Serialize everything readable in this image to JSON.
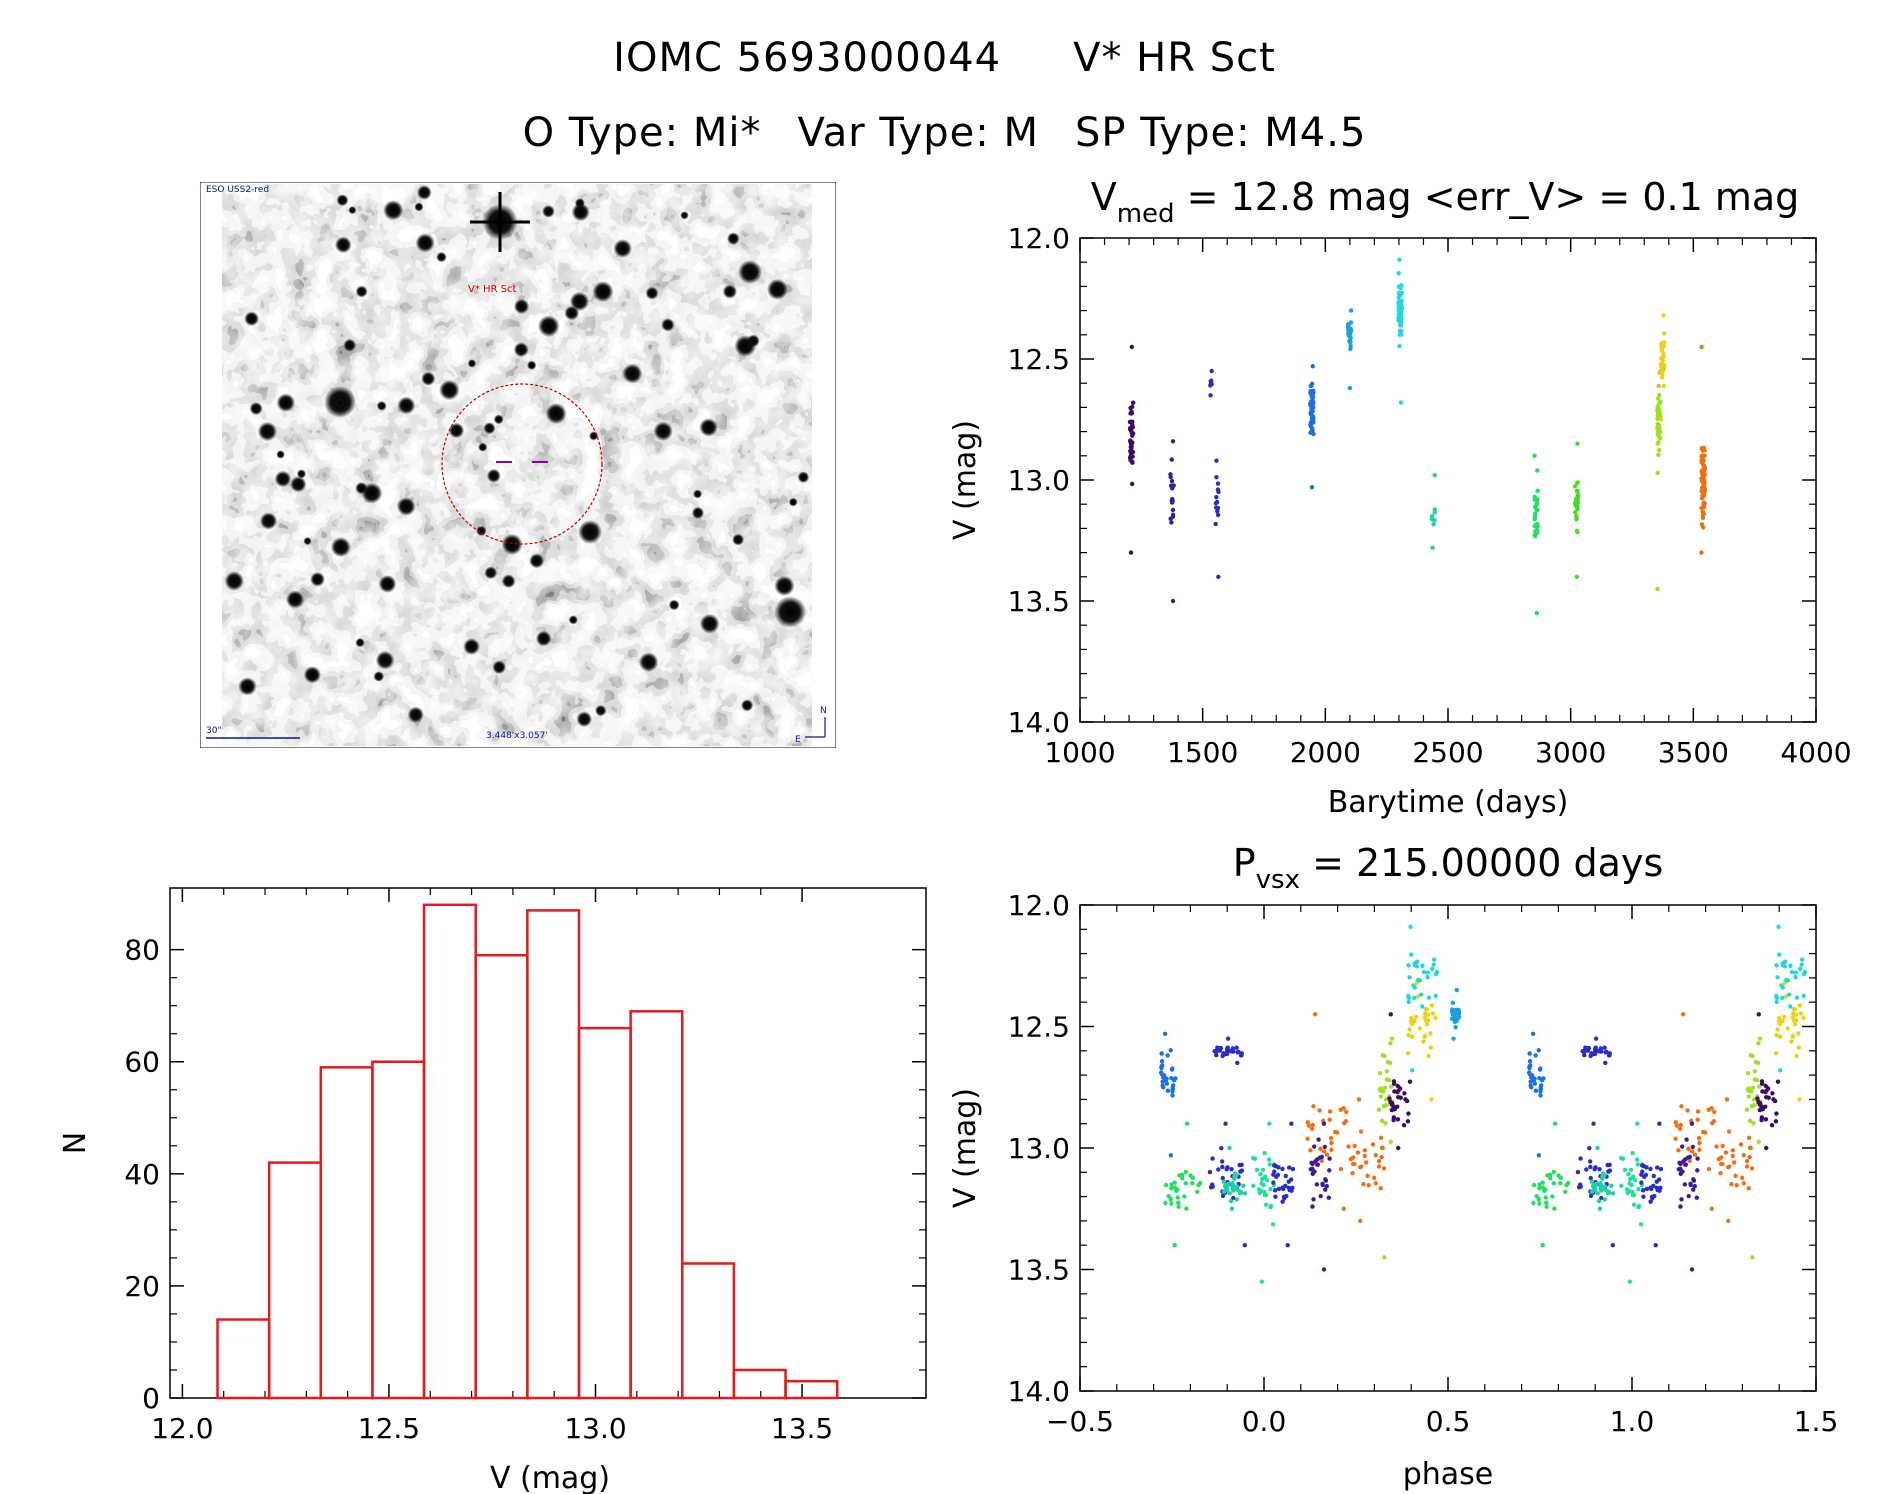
{
  "header": {
    "id": "IOMC 5693000044",
    "name": "V* HR Sct",
    "otype": "O Type: Mi*",
    "vartype": "Var Type: M",
    "sptype": "SP Type: M4.5"
  },
  "finder": {
    "survey": "ESO USS2-red",
    "target_label": "V* HR Sct",
    "scale_label": "30\"",
    "size_label": "3.448'x3.057'",
    "north": "N",
    "east": "E"
  },
  "chart_data": [
    {
      "id": "lightcurve",
      "type": "scatter",
      "title_main": "V",
      "title_sub": "med",
      "title_rest": " = 12.8 mag <err_V> = 0.1 mag",
      "xlabel": "Barytime (days)",
      "ylabel": "V (mag)",
      "xlim": [
        1000,
        4000
      ],
      "ylim": [
        14.0,
        12.0
      ],
      "xticks": [
        1000,
        1500,
        2000,
        2500,
        3000,
        3500,
        4000
      ],
      "yticks": [
        12.0,
        12.5,
        13.0,
        13.5,
        14.0
      ],
      "groups": [
        {
          "x": 1210,
          "ymin": 12.45,
          "ymax": 13.3,
          "center": 12.82,
          "n": 40,
          "color": "#3c0a6e"
        },
        {
          "x": 1375,
          "ymin": 12.84,
          "ymax": 13.5,
          "center": 13.05,
          "n": 18,
          "color": "#3a1c9a"
        },
        {
          "x": 1530,
          "ymin": 12.55,
          "ymax": 12.65,
          "center": 12.6,
          "n": 6,
          "color": "#2b2bc8"
        },
        {
          "x": 1560,
          "ymin": 12.92,
          "ymax": 13.4,
          "center": 13.1,
          "n": 12,
          "color": "#2b2bc8"
        },
        {
          "x": 1945,
          "ymin": 12.53,
          "ymax": 13.03,
          "center": 12.7,
          "n": 55,
          "color": "#1e6ee6"
        },
        {
          "x": 2100,
          "ymin": 12.3,
          "ymax": 12.62,
          "center": 12.4,
          "n": 25,
          "color": "#18a0e0"
        },
        {
          "x": 2305,
          "ymin": 12.09,
          "ymax": 12.68,
          "center": 12.3,
          "n": 60,
          "color": "#1ed8e0"
        },
        {
          "x": 2440,
          "ymin": 12.98,
          "ymax": 13.28,
          "center": 13.15,
          "n": 6,
          "color": "#20d0a8"
        },
        {
          "x": 2860,
          "ymin": 12.9,
          "ymax": 13.55,
          "center": 13.15,
          "n": 25,
          "color": "#20e060"
        },
        {
          "x": 3025,
          "ymin": 12.85,
          "ymax": 13.4,
          "center": 13.1,
          "n": 28,
          "color": "#40e020"
        },
        {
          "x": 3360,
          "ymin": 12.55,
          "ymax": 13.45,
          "center": 12.75,
          "n": 35,
          "color": "#a0e020"
        },
        {
          "x": 3375,
          "ymin": 12.32,
          "ymax": 12.75,
          "center": 12.5,
          "n": 30,
          "color": "#f0d010"
        },
        {
          "x": 3540,
          "ymin": 12.45,
          "ymax": 13.3,
          "center": 13.0,
          "n": 80,
          "color": "#f07010"
        }
      ]
    },
    {
      "id": "histogram",
      "type": "bar",
      "xlabel": "V (mag)",
      "ylabel": "N",
      "xlim": [
        11.97,
        13.8
      ],
      "ylim": [
        0,
        91
      ],
      "xticks": [
        12.0,
        12.5,
        13.0,
        13.5
      ],
      "yticks": [
        0,
        20,
        40,
        60,
        80
      ],
      "bin_edges": [
        12.085,
        12.21,
        12.335,
        12.46,
        12.585,
        12.71,
        12.835,
        12.96,
        13.085,
        13.21,
        13.335,
        13.46,
        13.585
      ],
      "bin_width": 0.125,
      "values": [
        14,
        42,
        59,
        60,
        88,
        79,
        87,
        66,
        69,
        24,
        5,
        3
      ],
      "color": "#e41a1c"
    },
    {
      "id": "phased",
      "type": "scatter",
      "title_main": "P",
      "title_sub": "vsx",
      "title_rest": " = 215.00000 days",
      "xlabel": "phase",
      "ylabel": "V (mag)",
      "xlim": [
        -0.5,
        1.5
      ],
      "ylim": [
        14.0,
        12.0
      ],
      "xticks": [
        -0.5,
        0.0,
        0.5,
        1.0,
        1.5
      ],
      "yticks": [
        12.0,
        12.5,
        13.0,
        13.5,
        14.0
      ],
      "groups": [
        {
          "phase": -0.26,
          "spread": 0.02,
          "ymin": 12.53,
          "ymax": 13.03,
          "center": 12.7,
          "color": "#1e6ee6"
        },
        {
          "phase": -0.1,
          "spread": 0.04,
          "ymin": 12.55,
          "ymax": 12.65,
          "center": 12.6,
          "color": "#2b2bc8"
        },
        {
          "phase": -0.1,
          "spread": 0.05,
          "ymin": 12.9,
          "ymax": 13.4,
          "center": 13.1,
          "color": "#2b2bc8"
        },
        {
          "phase": -0.22,
          "spread": 0.05,
          "ymin": 12.9,
          "ymax": 13.4,
          "center": 13.15,
          "color": "#20e060"
        },
        {
          "phase": -0.08,
          "spread": 0.03,
          "ymin": 13.0,
          "ymax": 13.25,
          "center": 13.15,
          "color": "#20d0a8"
        },
        {
          "phase": 0.0,
          "spread": 0.03,
          "ymin": 12.9,
          "ymax": 13.55,
          "center": 13.15,
          "color": "#20e0a0"
        },
        {
          "phase": 0.05,
          "spread": 0.03,
          "ymin": 12.9,
          "ymax": 13.4,
          "center": 13.15,
          "color": "#2b2bc8"
        },
        {
          "phase": 0.17,
          "spread": 0.06,
          "ymin": 12.45,
          "ymax": 13.25,
          "center": 12.95,
          "color": "#f07010"
        },
        {
          "phase": 0.15,
          "spread": 0.03,
          "ymin": 12.9,
          "ymax": 13.5,
          "center": 13.1,
          "color": "#3a1c9a"
        },
        {
          "phase": 0.28,
          "spread": 0.05,
          "ymin": 12.8,
          "ymax": 13.3,
          "center": 13.05,
          "color": "#f07010"
        },
        {
          "phase": 0.33,
          "spread": 0.02,
          "ymin": 12.55,
          "ymax": 13.45,
          "center": 12.75,
          "color": "#a0e020"
        },
        {
          "phase": 0.37,
          "spread": 0.03,
          "ymin": 12.45,
          "ymax": 13.0,
          "center": 12.82,
          "color": "#3c0a6e"
        },
        {
          "phase": 0.43,
          "spread": 0.04,
          "ymin": 12.32,
          "ymax": 12.8,
          "center": 12.5,
          "color": "#f0d010"
        },
        {
          "phase": 0.43,
          "spread": 0.04,
          "ymin": 12.09,
          "ymax": 12.68,
          "center": 12.3,
          "color": "#1ed8e0"
        },
        {
          "phase": 0.52,
          "spread": 0.01,
          "ymin": 12.35,
          "ymax": 12.55,
          "center": 12.45,
          "color": "#18a0e0"
        }
      ]
    }
  ]
}
